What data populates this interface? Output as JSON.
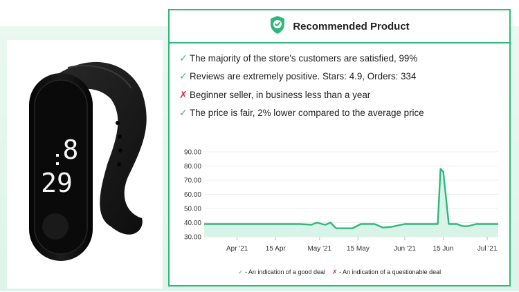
{
  "card": {
    "title": "Recommended Product"
  },
  "features": [
    {
      "status": "good",
      "mark": "✓",
      "text": "The majority of the store's customers are satisfied, 99%"
    },
    {
      "status": "good",
      "mark": "✓",
      "text": "Reviews are extremely positive. Stars: 4.9, Orders: 334"
    },
    {
      "status": "bad",
      "mark": "✗",
      "text": "Beginner seller, in business less than a year"
    },
    {
      "status": "good",
      "mark": "✓",
      "text": "The price is fair, 2% lower compared to the average price"
    }
  ],
  "product_display": {
    "time_top": "8",
    "time_bottom": "29"
  },
  "legend": {
    "good_mark": "✓",
    "good_text": "- An indication of a good deal",
    "bad_mark": "✗",
    "bad_text": "- An indication of a questionable deal"
  },
  "colors": {
    "accent": "#2fb87a",
    "fill": "#d8f3e7",
    "bad": "#e0243c"
  },
  "chart_data": {
    "type": "area",
    "title": "",
    "xlabel": "",
    "ylabel": "",
    "ylim": [
      30,
      90
    ],
    "yticks": [
      "90.00",
      "80.00",
      "70.00",
      "60.00",
      "50.00",
      "40.00",
      "30.00"
    ],
    "xtick_labels": [
      "Apr '21",
      "15 Apr",
      "May '21",
      "15 May",
      "Jun '21",
      "15 Jun",
      "Jul '21"
    ],
    "xtick_dates": [
      "2021-04-01",
      "2021-04-15",
      "2021-05-01",
      "2021-05-15",
      "2021-06-01",
      "2021-06-15",
      "2021-07-01"
    ],
    "grid": true,
    "series": [
      {
        "points": [
          [
            "2021-03-20",
            39
          ],
          [
            "2021-04-01",
            39
          ],
          [
            "2021-04-15",
            39
          ],
          [
            "2021-04-24",
            39
          ],
          [
            "2021-04-28",
            38.5
          ],
          [
            "2021-04-30",
            40
          ],
          [
            "2021-05-03",
            38.5
          ],
          [
            "2021-05-05",
            40
          ],
          [
            "2021-05-07",
            36
          ],
          [
            "2021-05-13",
            36
          ],
          [
            "2021-05-16",
            39
          ],
          [
            "2021-05-21",
            39
          ],
          [
            "2021-05-24",
            36.5
          ],
          [
            "2021-05-27",
            37
          ],
          [
            "2021-06-01",
            39
          ],
          [
            "2021-06-12",
            39
          ],
          [
            "2021-06-13",
            39
          ],
          [
            "2021-06-14",
            78
          ],
          [
            "2021-06-15",
            76
          ],
          [
            "2021-06-17",
            39
          ],
          [
            "2021-06-20",
            39
          ],
          [
            "2021-06-22",
            37.5
          ],
          [
            "2021-06-24",
            37.5
          ],
          [
            "2021-06-27",
            39
          ],
          [
            "2021-07-05",
            39
          ]
        ]
      }
    ]
  }
}
